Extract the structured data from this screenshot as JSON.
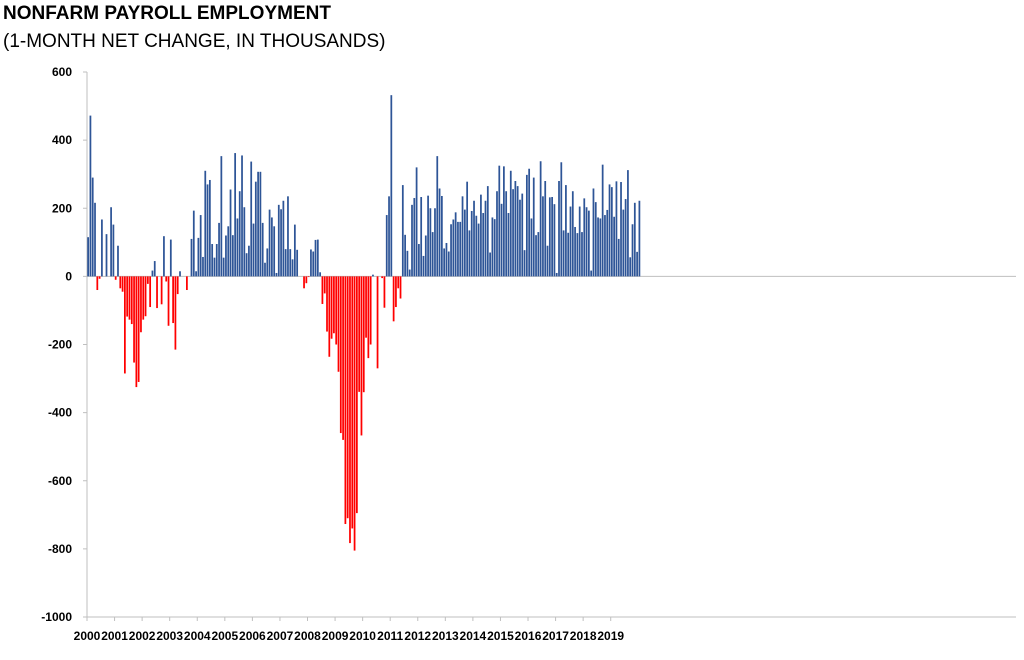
{
  "chart_data": {
    "type": "bar",
    "title": "NONFARM PAYROLL EMPLOYMENT",
    "subtitle": "(1-MONTH NET CHANGE, IN THOUSANDS)",
    "xlabel": "",
    "ylabel": "",
    "ylim": [
      -1000,
      600
    ],
    "y_ticks": [
      600,
      400,
      200,
      0,
      -200,
      -400,
      -600,
      -800,
      -1000
    ],
    "x_tick_labels": [
      "2000",
      "2001",
      "2002",
      "2003",
      "2004",
      "2005",
      "2006",
      "2007",
      "2008",
      "2009",
      "2010",
      "2011",
      "2012",
      "2013",
      "2014",
      "2015",
      "2016",
      "2017",
      "2018",
      "2019"
    ],
    "grid": false,
    "legend": "none",
    "colors": {
      "positive": "#2E5597",
      "negative": "#FF0000"
    },
    "x_start": "2000-01",
    "values": [
      115,
      472,
      290,
      216,
      -40,
      -7,
      167,
      0,
      124,
      0,
      203,
      152,
      -10,
      90,
      -35,
      -45,
      -285,
      -118,
      -127,
      -140,
      -253,
      -325,
      -310,
      -164,
      -127,
      -117,
      -22,
      -90,
      17,
      45,
      -93,
      0,
      -82,
      118,
      -15,
      -145,
      108,
      -137,
      -215,
      -52,
      15,
      0,
      0,
      -40,
      0,
      110,
      193,
      15,
      113,
      180,
      57,
      310,
      270,
      283,
      95,
      55,
      95,
      157,
      353,
      55,
      120,
      147,
      255,
      121,
      362,
      170,
      250,
      355,
      203,
      68,
      90,
      337,
      155,
      278,
      307,
      307,
      157,
      40,
      82,
      196,
      173,
      147,
      10,
      210,
      197,
      222,
      80,
      235,
      80,
      50,
      152,
      78,
      0,
      0,
      -35,
      -20,
      -2,
      79,
      73,
      107,
      108,
      12,
      -81,
      -50,
      -162,
      -236,
      -183,
      -167,
      -200,
      -280,
      -460,
      -480,
      -727,
      -710,
      -783,
      -740,
      -805,
      -695,
      -339,
      -467,
      -340,
      -180,
      -240,
      -200,
      5,
      0,
      -270,
      0,
      -5,
      -92,
      180,
      235,
      532,
      -132,
      -90,
      -35,
      -65,
      268,
      122,
      75,
      20,
      210,
      230,
      320,
      95,
      233,
      60,
      120,
      237,
      200,
      130,
      200,
      353,
      258,
      236,
      82,
      98,
      73,
      153,
      167,
      188,
      160,
      160,
      235,
      196,
      278,
      135,
      192,
      222,
      178,
      155,
      240,
      186,
      222,
      265,
      70,
      173,
      168,
      250,
      325,
      213,
      323,
      250,
      186,
      310,
      256,
      280,
      265,
      225,
      243,
      77,
      298,
      316,
      170,
      290,
      121,
      130,
      338,
      235,
      280,
      90,
      232,
      233,
      212,
      10,
      280,
      335,
      135,
      268,
      128,
      205,
      250,
      145,
      127,
      205,
      130,
      229,
      203,
      193,
      17,
      258,
      218,
      173,
      170,
      328,
      180,
      195,
      270,
      262,
      175,
      279,
      110,
      277,
      196,
      227,
      312,
      56,
      153,
      216,
      72,
      222
    ]
  }
}
